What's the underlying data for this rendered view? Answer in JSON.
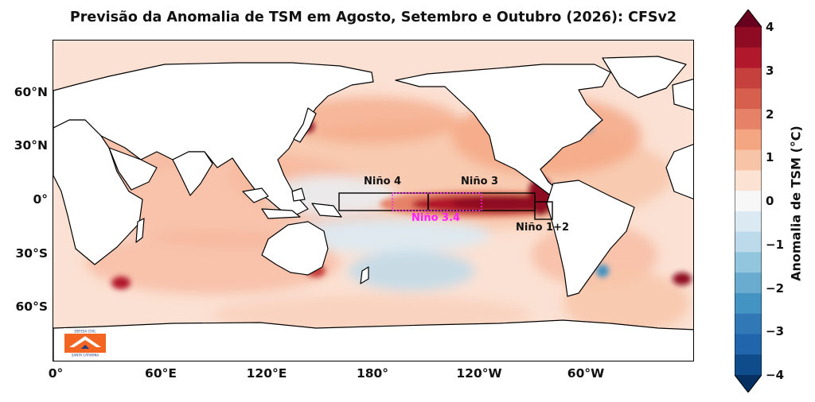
{
  "title": "Previsão da Anomalia de TSM em Agosto, Setembro e Outubro (2026): CFSv2",
  "lat_ticks": [
    "60°N",
    "30°N",
    "0°",
    "30°S",
    "60°S"
  ],
  "lon_ticks": [
    "0°",
    "60°E",
    "120°E",
    "180°",
    "120°W",
    "60°W"
  ],
  "colorbar": {
    "label": "Anomalia de TSM (°C)",
    "ticks": [
      "4",
      "3",
      "2",
      "1",
      "0",
      "−1",
      "−2",
      "−3",
      "−4"
    ],
    "colors": [
      "#67001f",
      "#8f0b24",
      "#b2182b",
      "#c6413e",
      "#d6604d",
      "#e58268",
      "#f4a582",
      "#f8c4a8",
      "#fbe2d2",
      "#f7f7f7",
      "#dbeaf2",
      "#bcdaea",
      "#92c5de",
      "#6aaccf",
      "#4393c3",
      "#3079b6",
      "#2166ac",
      "#0f4c8c",
      "#053061"
    ]
  },
  "regions": {
    "nino4": "Niño 4",
    "nino3": "Niño 3",
    "nino34": "Niño 3.4",
    "nino12": "Niño 1+2"
  },
  "logo": {
    "lines": [
      "DEFESA CIVIL",
      "SANTA CATARINA"
    ],
    "color": "#f26522"
  }
}
